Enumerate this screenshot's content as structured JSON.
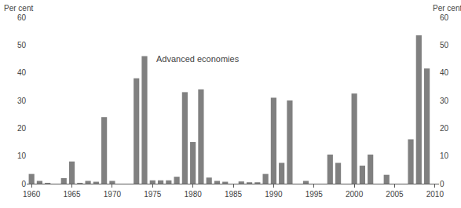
{
  "chart_data": {
    "type": "bar",
    "ylabel": "Per cent",
    "y2label": "Per cent",
    "annotations": [
      {
        "text": "Advanced economies",
        "x": 1975.3,
        "y": 45
      }
    ],
    "x": [
      1960,
      1961,
      1962,
      1963,
      1964,
      1965,
      1966,
      1967,
      1968,
      1969,
      1970,
      1971,
      1972,
      1973,
      1974,
      1975,
      1976,
      1977,
      1978,
      1979,
      1980,
      1981,
      1982,
      1983,
      1984,
      1985,
      1986,
      1987,
      1988,
      1989,
      1990,
      1991,
      1992,
      1993,
      1994,
      1995,
      1996,
      1997,
      1998,
      1999,
      2000,
      2001,
      2002,
      2003,
      2004,
      2005,
      2006,
      2007,
      2008,
      2009
    ],
    "values": [
      3.5,
      1,
      0.3,
      0,
      2,
      8,
      0.3,
      1,
      0.7,
      24,
      1,
      0,
      0,
      38,
      46,
      1.2,
      1.2,
      1.2,
      2.5,
      33,
      15,
      34,
      2.2,
      1,
      0.7,
      0,
      0.8,
      0.5,
      0.5,
      3.5,
      31,
      7.5,
      30,
      0,
      1,
      0,
      0,
      10.5,
      7.5,
      0,
      32.5,
      6.5,
      10.5,
      0,
      3.2,
      0,
      0,
      16,
      53.5,
      41.5
    ],
    "color": "#808080",
    "xlim": [
      1959.4,
      2010.5
    ],
    "xticks": [
      1960,
      1965,
      1970,
      1975,
      1980,
      1985,
      1990,
      1995,
      2000,
      2005,
      2010
    ],
    "ylim": [
      0,
      60
    ],
    "yticks": [
      0,
      10,
      20,
      30,
      40,
      50,
      60
    ],
    "y2lim": [
      0,
      60
    ],
    "y2ticks": [
      0,
      10,
      20,
      30,
      40,
      50,
      60
    ],
    "grid": false
  }
}
